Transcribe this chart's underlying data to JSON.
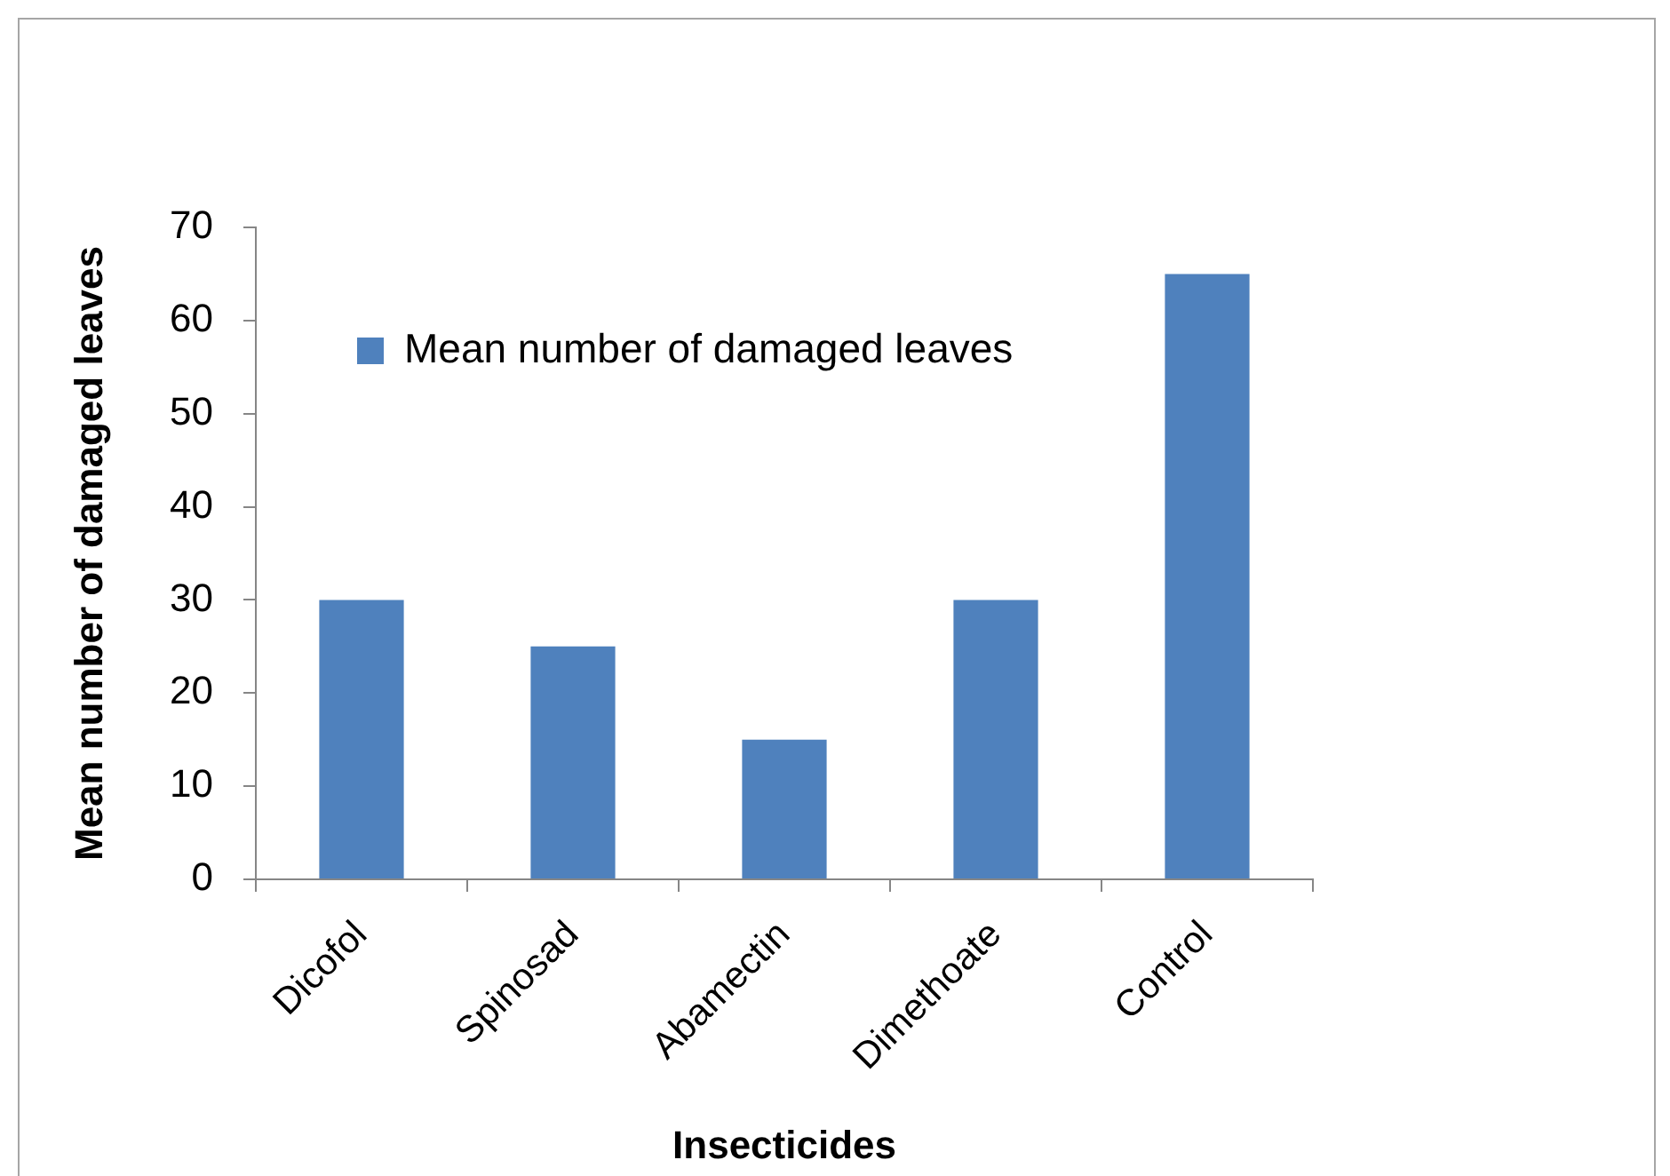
{
  "chart_data": {
    "type": "bar",
    "xlabel": "Insecticides",
    "ylabel": "Mean number of damaged leaves",
    "categories": [
      "Dicofol",
      "Spinosad",
      "Abamectin",
      "Dimethoate",
      "Control"
    ],
    "series": [
      {
        "name": "Mean number of damaged leaves",
        "color": "#4f81bd",
        "values": [
          30,
          25,
          15,
          30,
          65
        ]
      }
    ],
    "ylim": [
      0,
      70
    ],
    "yticks": [
      0,
      10,
      20,
      30,
      40,
      50,
      60,
      70
    ],
    "grid": false,
    "legend": "top left"
  }
}
